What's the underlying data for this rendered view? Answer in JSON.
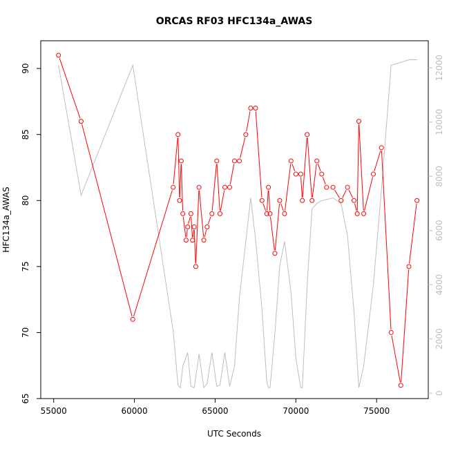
{
  "chart_data": {
    "type": "line",
    "title": "ORCAS RF03 HFC134a_AWAS",
    "xlabel": "UTC Seconds",
    "ylabel": "HFC134a_AWAS",
    "xlim": [
      54200,
      78200
    ],
    "ylim": [
      65,
      92.1
    ],
    "y2lim": [
      -200,
      13000
    ],
    "x_ticks": [
      55000,
      60000,
      65000,
      70000,
      75000
    ],
    "y_ticks": [
      65,
      70,
      75,
      80,
      85,
      90
    ],
    "y2_ticks": [
      0,
      2000,
      4000,
      6000,
      8000,
      10000,
      12000
    ],
    "colors": {
      "primary": "#ff0000",
      "secondary": "#bebebe",
      "axis": "#000000"
    },
    "series": [
      {
        "axis": "left",
        "style": "line-with-open-circles",
        "x": [
          55300,
          56700,
          59900,
          62400,
          62700,
          62800,
          62900,
          63000,
          63200,
          63300,
          63500,
          63600,
          63700,
          63800,
          64000,
          64300,
          64500,
          64800,
          65100,
          65300,
          65600,
          65900,
          66200,
          66500,
          66900,
          67200,
          67500,
          67900,
          68200,
          68300,
          68400,
          68700,
          69000,
          69300,
          69700,
          70000,
          70300,
          70400,
          70700,
          71000,
          71300,
          71600,
          71900,
          72300,
          72800,
          73200,
          73600,
          73800,
          73900,
          74200,
          74800,
          75300,
          75900,
          76500,
          77000,
          77500
        ],
        "y": [
          91,
          86,
          71,
          81,
          85,
          80,
          83,
          79,
          77,
          78,
          79,
          77,
          78,
          75,
          81,
          77,
          78,
          79,
          83,
          79,
          81,
          81,
          83,
          83,
          85,
          87,
          87,
          80,
          79,
          81,
          79,
          76,
          80,
          79,
          83,
          82,
          82,
          80,
          85,
          80,
          83,
          82,
          81,
          81,
          80,
          81,
          80,
          79,
          86,
          79,
          82,
          84,
          70,
          66,
          75,
          80
        ]
      },
      {
        "axis": "right",
        "style": "line",
        "x": [
          55300,
          56700,
          59900,
          62400,
          62700,
          62850,
          63000,
          63300,
          63500,
          63700,
          63900,
          64000,
          64300,
          64500,
          64800,
          65100,
          65300,
          65600,
          65900,
          66200,
          66500,
          66900,
          67200,
          67500,
          67900,
          68200,
          68300,
          68400,
          68700,
          69000,
          69300,
          69700,
          70000,
          70300,
          70400,
          70700,
          71000,
          71300,
          71600,
          72300,
          72800,
          73200,
          73600,
          73900,
          74200,
          74800,
          75300,
          75900,
          76500,
          77000,
          77500
        ],
        "y": [
          12100,
          7300,
          12100,
          2300,
          300,
          200,
          1000,
          1500,
          250,
          200,
          1000,
          1450,
          200,
          350,
          1500,
          250,
          300,
          1500,
          250,
          1000,
          3500,
          5600,
          7200,
          5700,
          3100,
          400,
          200,
          200,
          2200,
          4700,
          5600,
          3700,
          1300,
          200,
          200,
          4000,
          6800,
          7000,
          7100,
          7200,
          7000,
          5800,
          3000,
          200,
          1000,
          4000,
          7500,
          12100,
          12200,
          12300,
          12300
        ]
      }
    ]
  }
}
